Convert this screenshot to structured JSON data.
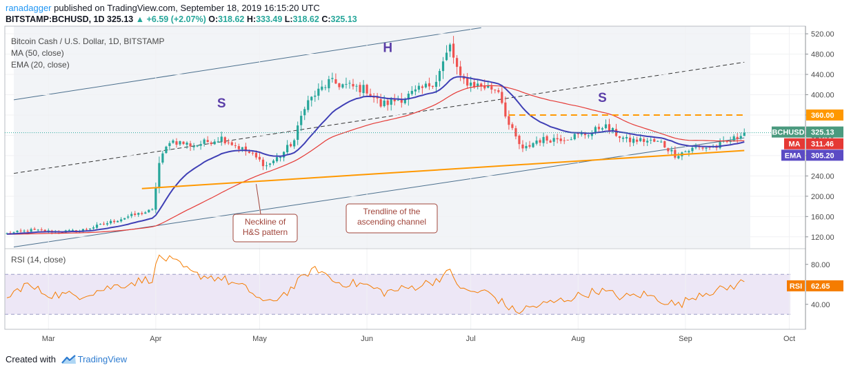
{
  "header": {
    "user": "ranadagger",
    "published_text": "published on TradingView.com, September 18, 2019 16:15:20 UTC",
    "symbol": "BITSTAMP:BCHUSD, 1D",
    "last": "325.13",
    "change": "+6.59 (+2.07%)",
    "o_label": "O:",
    "o": "318.62",
    "h_label": "H:",
    "h": "333.49",
    "l_label": "L:",
    "l": "318.62",
    "c_label": "C:",
    "c": "325.13"
  },
  "legend": {
    "title": "Bitcoin Cash / U.S. Dollar, 1D, BITSTAMP",
    "ma": "MA (50, close)",
    "ema": "EMA (20, close)",
    "rsi": "RSI (14, close)"
  },
  "footer": {
    "created_with": "Created with",
    "brand": "TradingView"
  },
  "colors": {
    "up": "#26a69a",
    "down": "#ef5350",
    "ma": "#e53935",
    "ema": "#3f3fb5",
    "rsi": "#f57c00",
    "orange": "#ff9800",
    "channel": "#4a6e8c",
    "annotation": "#a0443a",
    "axis_tag_bch": "#4b9a7f",
    "axis_tag_ma": "#e53935",
    "axis_tag_ema": "#5b4bc4"
  },
  "chart_data": [
    {
      "type": "candlestick",
      "title": "Bitcoin Cash / U.S. Dollar, 1D, BITSTAMP",
      "x_labels": [
        "Mar",
        "Apr",
        "May",
        "Jun",
        "Jul",
        "Aug",
        "Sep",
        "Oct"
      ],
      "y_ticks": [
        120,
        160,
        200,
        240,
        280,
        320,
        360,
        400,
        440,
        480,
        520
      ],
      "ylim": [
        98,
        535
      ],
      "first_day": "2019-02-17",
      "last_day": "2019-09-18",
      "close_anchors": [
        [
          "2019-02-17",
          126
        ],
        [
          "2019-02-24",
          133
        ],
        [
          "2019-03-03",
          130
        ],
        [
          "2019-03-10",
          132
        ],
        [
          "2019-03-17",
          145
        ],
        [
          "2019-03-24",
          160
        ],
        [
          "2019-03-31",
          172
        ],
        [
          "2019-04-02",
          265
        ],
        [
          "2019-04-05",
          310
        ],
        [
          "2019-04-12",
          300
        ],
        [
          "2019-04-20",
          315
        ],
        [
          "2019-04-28",
          285
        ],
        [
          "2019-05-03",
          260
        ],
        [
          "2019-05-07",
          280
        ],
        [
          "2019-05-11",
          310
        ],
        [
          "2019-05-14",
          380
        ],
        [
          "2019-05-17",
          400
        ],
        [
          "2019-05-21",
          425
        ],
        [
          "2019-05-28",
          415
        ],
        [
          "2019-06-01",
          410
        ],
        [
          "2019-06-05",
          380
        ],
        [
          "2019-06-12",
          395
        ],
        [
          "2019-06-18",
          415
        ],
        [
          "2019-06-21",
          430
        ],
        [
          "2019-06-25",
          495
        ],
        [
          "2019-06-28",
          430
        ],
        [
          "2019-07-02",
          420
        ],
        [
          "2019-07-09",
          410
        ],
        [
          "2019-07-12",
          340
        ],
        [
          "2019-07-16",
          290
        ],
        [
          "2019-07-20",
          310
        ],
        [
          "2019-07-28",
          315
        ],
        [
          "2019-08-05",
          325
        ],
        [
          "2019-08-08",
          340
        ],
        [
          "2019-08-15",
          310
        ],
        [
          "2019-08-20",
          310
        ],
        [
          "2019-08-25",
          305
        ],
        [
          "2019-08-29",
          282
        ],
        [
          "2019-09-04",
          295
        ],
        [
          "2019-09-10",
          298
        ],
        [
          "2019-09-17",
          318.62
        ],
        [
          "2019-09-18",
          325.13
        ]
      ],
      "last_candle": {
        "open": 318.62,
        "high": 333.49,
        "low": 318.62,
        "close": 325.13
      },
      "series": [
        {
          "name": "MA (50, close)",
          "last": 311.46
        },
        {
          "name": "EMA (20, close)",
          "last": 305.2
        }
      ],
      "price_tags": [
        {
          "label": "BCHUSD",
          "value": "325.13"
        },
        {
          "label": "MA",
          "value": "311.46"
        },
        {
          "label": "EMA",
          "value": "305.20"
        },
        {
          "label": "",
          "value": "360.00"
        }
      ],
      "drawings": {
        "channel_upper": [
          [
            "2019-02-19",
            390
          ],
          [
            "2019-07-04",
            532
          ]
        ],
        "channel_lower": [
          [
            "2019-02-19",
            100
          ],
          [
            "2019-09-18",
            315
          ]
        ],
        "channel_mid": [
          [
            "2019-02-19",
            245
          ],
          [
            "2019-09-18",
            464
          ]
        ],
        "neckline": [
          [
            "2019-03-28",
            215
          ],
          [
            "2019-09-18",
            290
          ]
        ],
        "resistance_level": {
          "from": "2019-07-12",
          "to": "2019-09-18",
          "value": 360
        },
        "pattern_labels": [
          {
            "text": "S",
            "date": "2019-04-20",
            "price": 375
          },
          {
            "text": "H",
            "date": "2019-06-07",
            "price": 484
          },
          {
            "text": "S",
            "date": "2019-08-08",
            "price": 386
          }
        ],
        "annotations": [
          {
            "text": "Neckline of H&S pattern",
            "lines": [
              "Neckline of",
              "H&S pattern"
            ]
          },
          {
            "text": "Trendline of the ascending channel",
            "lines": [
              "Trendline of the",
              "ascending channel"
            ]
          }
        ]
      }
    },
    {
      "type": "line",
      "title": "RSI (14, close)",
      "y_ticks": [
        40,
        80
      ],
      "ylim": [
        15,
        95
      ],
      "band": [
        30,
        70
      ],
      "last": "62.65",
      "anchors": [
        [
          "2019-02-17",
          45
        ],
        [
          "2019-02-22",
          60
        ],
        [
          "2019-03-01",
          50
        ],
        [
          "2019-03-10",
          49
        ],
        [
          "2019-03-20",
          58
        ],
        [
          "2019-03-31",
          66
        ],
        [
          "2019-04-02",
          88
        ],
        [
          "2019-04-06",
          83
        ],
        [
          "2019-04-12",
          70
        ],
        [
          "2019-04-20",
          66
        ],
        [
          "2019-04-28",
          54
        ],
        [
          "2019-05-03",
          40
        ],
        [
          "2019-05-10",
          55
        ],
        [
          "2019-05-15",
          72
        ],
        [
          "2019-05-18",
          75
        ],
        [
          "2019-05-23",
          62
        ],
        [
          "2019-05-31",
          60
        ],
        [
          "2019-06-06",
          52
        ],
        [
          "2019-06-14",
          57
        ],
        [
          "2019-06-20",
          63
        ],
        [
          "2019-06-25",
          72
        ],
        [
          "2019-06-29",
          53
        ],
        [
          "2019-07-06",
          52
        ],
        [
          "2019-07-14",
          32
        ],
        [
          "2019-07-17",
          36
        ],
        [
          "2019-07-26",
          43
        ],
        [
          "2019-08-07",
          54
        ],
        [
          "2019-08-14",
          47
        ],
        [
          "2019-08-20",
          50
        ],
        [
          "2019-08-30",
          39
        ],
        [
          "2019-09-05",
          51
        ],
        [
          "2019-09-12",
          55
        ],
        [
          "2019-09-18",
          62.65
        ]
      ]
    }
  ]
}
